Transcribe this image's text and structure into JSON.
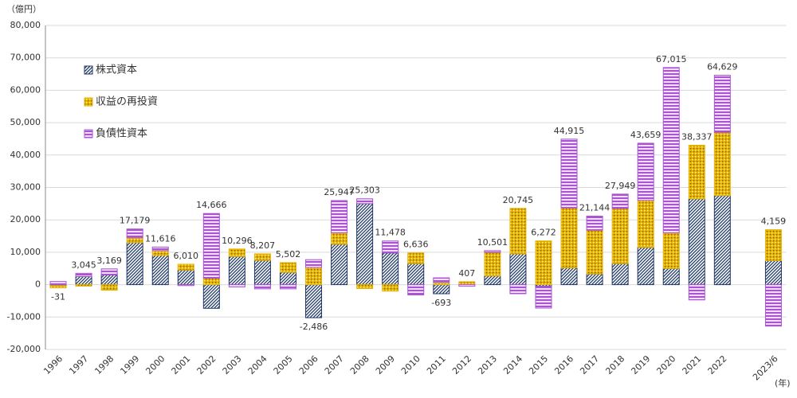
{
  "chart_data": {
    "type": "stacked_bar",
    "y_unit": "（億円）",
    "x_unit": "(年)",
    "categories": [
      "1996",
      "1997",
      "1998",
      "1999",
      "2000",
      "2001",
      "2002",
      "2003",
      "2004",
      "2005",
      "2006",
      "2007",
      "2008",
      "2009",
      "2010",
      "2011",
      "2012",
      "2013",
      "2014",
      "2015",
      "2016",
      "2017",
      "2018",
      "2019",
      "2020",
      "2021",
      "2022",
      null,
      "2023/6"
    ],
    "series": [
      {
        "name": "株式資本",
        "color": "#1f3864",
        "pattern": "diagonal",
        "values": [
          -300,
          2500,
          3000,
          13000,
          9000,
          4500,
          -7300,
          8700,
          7500,
          3800,
          -10200,
          12500,
          25000,
          9800,
          6500,
          -2800,
          0,
          2700,
          9500,
          -500,
          5200,
          3300,
          6500,
          11500,
          5000,
          26500,
          27500,
          null,
          7400
        ]
      },
      {
        "name": "収益の再投資",
        "color": "#e6b400",
        "pattern": "dots",
        "values": [
          -700,
          -455,
          -1700,
          1500,
          1500,
          1800,
          2000,
          2296,
          2000,
          3000,
          5300,
          3500,
          -1200,
          -2000,
          3300,
          700,
          907,
          7300,
          14045,
          13500,
          18500,
          13500,
          17000,
          14500,
          11000,
          16537,
          19500,
          null,
          9559
        ]
      },
      {
        "name": "負債性資本",
        "color": "#a855d0",
        "pattern": "horizontal",
        "values": [
          969,
          1000,
          1869,
          2679,
          1116,
          -290,
          19966,
          -700,
          -1293,
          -1298,
          2414,
          9947,
          1503,
          3678,
          -3164,
          1407,
          -500,
          501,
          -2800,
          -6728,
          21215,
          4344,
          4449,
          17659,
          51015,
          -4700,
          17629,
          null,
          -12800
        ]
      }
    ],
    "totals": {
      "values": [
        -31,
        3045,
        3169,
        17179,
        11616,
        6010,
        14666,
        10296,
        8207,
        5502,
        -2486,
        25947,
        25303,
        11478,
        6636,
        -693,
        407,
        10501,
        20745,
        6272,
        44915,
        21144,
        27949,
        43659,
        67015,
        38337,
        64629,
        null,
        4159
      ],
      "value_labels": [
        "-31",
        "3,045",
        "3,169",
        "17,179",
        "11,616",
        "6,010",
        "14,666",
        "10,296",
        "8,207",
        "5,502",
        "-2,486",
        "25,947",
        "25,303",
        "11,478",
        "6,636",
        "-693",
        "407",
        "10,501",
        "20,745",
        "6,272",
        "44,915",
        "21,144",
        "27,949",
        "43,659",
        "67,015",
        "38,337",
        "64,629",
        null,
        "4,159"
      ]
    },
    "ylim": [
      -20000,
      80000
    ],
    "yticks": [
      {
        "value": -20000,
        "label": "-20,000"
      },
      {
        "value": -10000,
        "label": "-10,000"
      },
      0,
      {
        "value": 10000,
        "label": "10,000"
      },
      {
        "value": 20000,
        "label": "20,000"
      },
      {
        "value": 30000,
        "label": "30,000"
      },
      {
        "value": 40000,
        "label": "40,000"
      },
      {
        "value": 50000,
        "label": "50,000"
      },
      {
        "value": 60000,
        "label": "60,000"
      },
      {
        "value": 70000,
        "label": "70,000"
      },
      {
        "value": 80000,
        "label": "80,000"
      }
    ],
    "grid": true,
    "legend": "upper-left"
  }
}
